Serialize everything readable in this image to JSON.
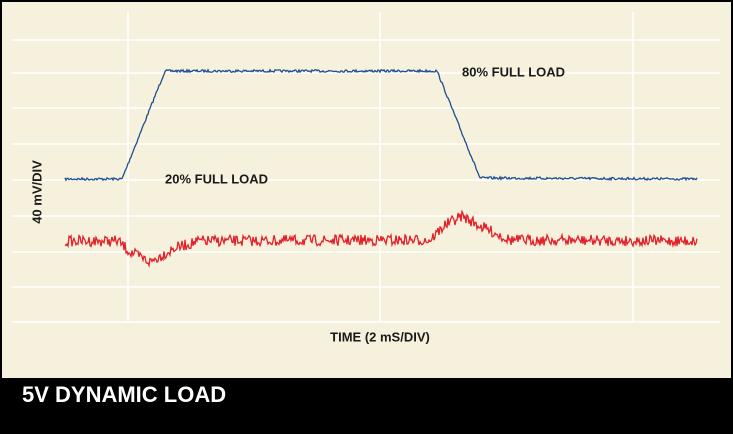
{
  "figure": {
    "title": "5V DYNAMIC LOAD",
    "x_label": "TIME (2 mS/DIV)",
    "y_label": "40 mV/DIV",
    "annotations": [
      "80% FULL LOAD",
      "20% FULL LOAD"
    ]
  }
}
